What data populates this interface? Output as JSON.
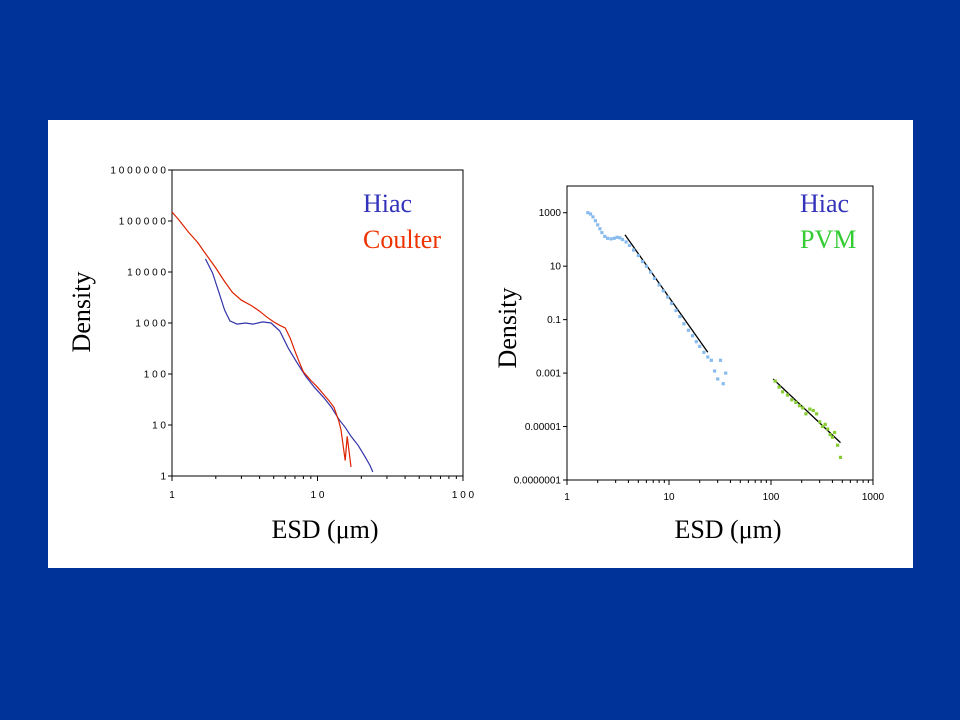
{
  "colors": {
    "background": "#003399",
    "panel": "#ffffff",
    "hiac_line": "#3333aa",
    "coulter_line": "#dd2200",
    "hiac_points": "#88bbee",
    "pvm_points": "#88cc33",
    "fit_line": "#000000",
    "legend_hiac": "#3333bb",
    "legend_coulter": "#ee3300",
    "legend_pvm": "#33cc33"
  },
  "chart_data": [
    {
      "type": "line",
      "xlabel": "ESD (μm)",
      "ylabel": "Density",
      "x_scale": "log",
      "y_scale": "log",
      "xlim": [
        1,
        100
      ],
      "ylim": [
        1,
        1000000
      ],
      "x_ticks": [
        {
          "value": 1,
          "label": "1"
        },
        {
          "value": 10,
          "label": "1 0"
        },
        {
          "value": 100,
          "label": "1 0 0"
        }
      ],
      "y_ticks": [
        {
          "value": 1,
          "label": "1"
        },
        {
          "value": 10,
          "label": "1 0"
        },
        {
          "value": 100,
          "label": "1 0 0"
        },
        {
          "value": 1000,
          "label": "1 0 0 0"
        },
        {
          "value": 10000,
          "label": "1 0 0 0 0"
        },
        {
          "value": 100000,
          "label": "1 0 0 0 0 0"
        },
        {
          "value": 1000000,
          "label": "1 0 0 0 0 0 0"
        }
      ],
      "legend": {
        "placement": "top-right",
        "entries": [
          "Hiac",
          "Coulter"
        ]
      },
      "series": [
        {
          "name": "Hiac",
          "x": [
            1.7,
            1.9,
            2.1,
            2.3,
            2.5,
            2.8,
            3.2,
            3.6,
            4.2,
            4.8,
            5.5,
            6.3,
            7.2,
            8.3,
            9.5,
            11,
            12.5,
            14,
            15.5,
            17,
            19,
            21,
            23,
            24
          ],
          "y": [
            18000,
            9500,
            4000,
            1800,
            1100,
            950,
            1000,
            950,
            1050,
            1000,
            700,
            320,
            170,
            90,
            55,
            35,
            22,
            13,
            9,
            6,
            4,
            2.5,
            1.6,
            1.2
          ]
        },
        {
          "name": "Coulter",
          "x": [
            1.0,
            1.1,
            1.3,
            1.5,
            1.7,
            2.0,
            2.3,
            2.6,
            3.0,
            3.5,
            4.0,
            4.5,
            5.0,
            5.5,
            6.0,
            6.5,
            7.0,
            7.5,
            8.0,
            9.0,
            10,
            11,
            12,
            13,
            14,
            14.5,
            15,
            15.5,
            16,
            16.5,
            17
          ],
          "y": [
            150000,
            110000,
            60000,
            38000,
            23000,
            12000,
            6500,
            4000,
            2800,
            2200,
            1700,
            1300,
            1050,
            900,
            800,
            500,
            280,
            170,
            110,
            75,
            55,
            40,
            30,
            22,
            12,
            8,
            4,
            2,
            6,
            3,
            1.5
          ]
        }
      ]
    },
    {
      "type": "scatter",
      "xlabel": "ESD (μm)",
      "ylabel": "Density",
      "x_scale": "log",
      "y_scale": "log",
      "xlim": [
        1,
        1000
      ],
      "ylim": [
        1e-07,
        10000
      ],
      "x_ticks": [
        {
          "value": 1,
          "label": "1"
        },
        {
          "value": 10,
          "label": "10"
        },
        {
          "value": 100,
          "label": "100"
        },
        {
          "value": 1000,
          "label": "1000"
        }
      ],
      "y_ticks": [
        {
          "value": 1000,
          "label": "1000"
        },
        {
          "value": 10,
          "label": "10"
        },
        {
          "value": 0.1,
          "label": "0.1"
        },
        {
          "value": 0.001,
          "label": "0.001"
        },
        {
          "value": 1e-05,
          "label": "0.00001"
        },
        {
          "value": 1e-07,
          "label": "0.0000001"
        }
      ],
      "legend": {
        "placement": "top-right",
        "entries": [
          "Hiac",
          "PVM"
        ]
      },
      "series": [
        {
          "name": "Hiac",
          "x": [
            1.6,
            1.7,
            1.8,
            1.9,
            2.0,
            2.1,
            2.2,
            2.35,
            2.5,
            2.7,
            2.9,
            3.1,
            3.3,
            3.5,
            3.8,
            4.1,
            4.5,
            5.0,
            5.5,
            6.0,
            6.6,
            7.2,
            8.0,
            8.8,
            9.7,
            10.6,
            11.7,
            12.8,
            14,
            15.5,
            17,
            18.5,
            20,
            22,
            24,
            26,
            28,
            30,
            32,
            34,
            36
          ],
          "y": [
            1000,
            900,
            700,
            500,
            350,
            250,
            180,
            130,
            110,
            105,
            110,
            120,
            115,
            100,
            80,
            60,
            40,
            25,
            15,
            10,
            6,
            3.5,
            2,
            1.2,
            0.7,
            0.4,
            0.22,
            0.13,
            0.07,
            0.04,
            0.025,
            0.015,
            0.01,
            0.006,
            0.004,
            0.003,
            0.0012,
            0.0006,
            0.003,
            0.0004,
            0.001
          ]
        },
        {
          "name": "PVM",
          "x": [
            110,
            120,
            130,
            145,
            160,
            175,
            190,
            205,
            220,
            240,
            260,
            280,
            300,
            320,
            340,
            360,
            380,
            400,
            420,
            450,
            480
          ],
          "y": [
            0.0005,
            0.0003,
            0.0002,
            0.00015,
            0.0001,
            8e-05,
            6e-05,
            5e-05,
            3e-05,
            4.5e-05,
            4e-05,
            3e-05,
            1.5e-05,
            1e-05,
            1.2e-05,
            8e-06,
            5e-06,
            4e-06,
            6e-06,
            2e-06,
            7e-07
          ]
        }
      ],
      "fit_lines": [
        {
          "series": "Hiac",
          "x": [
            3.7,
            24
          ],
          "y": [
            150,
            0.006
          ]
        },
        {
          "series": "PVM",
          "x": [
            105,
            480
          ],
          "y": [
            0.0006,
            2.5e-06
          ]
        }
      ]
    }
  ]
}
